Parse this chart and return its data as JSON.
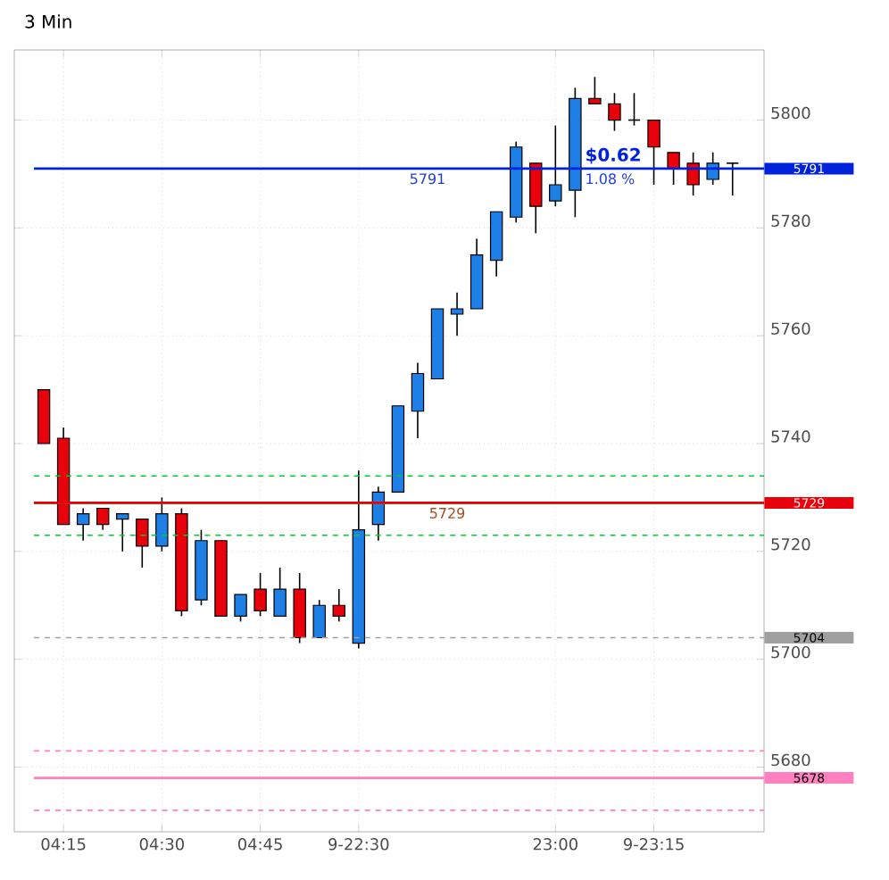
{
  "chart_data": {
    "type": "candlestick",
    "title": "3 Min",
    "categories": [
      null,
      "04:15",
      null,
      null,
      null,
      null,
      "04:30",
      null,
      null,
      null,
      null,
      "04:45",
      null,
      null,
      null,
      null,
      "9-22:30",
      null,
      null,
      null,
      null,
      null,
      null,
      null,
      null,
      null,
      "23:00",
      null,
      null,
      null,
      null,
      "9-23:15",
      null,
      null,
      null,
      null
    ],
    "ohlc": [
      [
        5750,
        5750,
        5740,
        5740
      ],
      [
        5741,
        5743,
        5725,
        5725
      ],
      [
        5725,
        5728,
        5722,
        5727
      ],
      [
        5728,
        5728,
        5724,
        5725
      ],
      [
        5726,
        5727,
        5720,
        5727
      ],
      [
        5726,
        5726,
        5717,
        5721
      ],
      [
        5721,
        5730,
        5720,
        5727
      ],
      [
        5727,
        5728,
        5708,
        5709
      ],
      [
        5711,
        5724,
        5710,
        5722
      ],
      [
        5722,
        5722,
        5708,
        5708
      ],
      [
        5708,
        5712,
        5707,
        5712
      ],
      [
        5713,
        5716,
        5708,
        5709
      ],
      [
        5708,
        5717,
        5708,
        5713
      ],
      [
        5713,
        5716,
        5703,
        5704
      ],
      [
        5704,
        5711,
        5704,
        5710
      ],
      [
        5710,
        5713,
        5707,
        5708
      ],
      [
        5703,
        5735,
        5702,
        5724
      ],
      [
        5725,
        5732,
        5722,
        5731
      ],
      [
        5731,
        5747,
        5731,
        5747
      ],
      [
        5746,
        5755,
        5741,
        5753
      ],
      [
        5752,
        5765,
        5752,
        5765
      ],
      [
        5764,
        5768,
        5760,
        5765
      ],
      [
        5765,
        5778,
        5765,
        5775
      ],
      [
        5774,
        5783,
        5771,
        5783
      ],
      [
        5782,
        5796,
        5781,
        5795
      ],
      [
        5792,
        5792,
        5779,
        5784
      ],
      [
        5785,
        5799,
        5784,
        5788
      ],
      [
        5787,
        5806,
        5782,
        5804
      ],
      [
        5804,
        5808,
        5803,
        5803
      ],
      [
        5803,
        5805,
        5798,
        5800
      ],
      [
        5800,
        5805,
        5799,
        5800
      ],
      [
        5800,
        5800,
        5788,
        5795
      ],
      [
        5794,
        5794,
        5788,
        5791
      ],
      [
        5792,
        5794,
        5786,
        5788
      ],
      [
        5789,
        5794,
        5788,
        5792
      ],
      [
        5792,
        5792,
        5786,
        5792
      ]
    ],
    "colors": [
      "#e8000b",
      "#e8000b",
      "#1e7fe6",
      "#e8000b",
      "#1e7fe6",
      "#e8000b",
      "#1e7fe6",
      "#e8000b",
      "#1e7fe6",
      "#e8000b",
      "#1e7fe6",
      "#e8000b",
      "#1e7fe6",
      "#e8000b",
      "#1e7fe6",
      "#e8000b",
      "#1e7fe6",
      "#1e7fe6",
      "#1e7fe6",
      "#1e7fe6",
      "#1e7fe6",
      "#1e7fe6",
      "#1e7fe6",
      "#1e7fe6",
      "#1e7fe6",
      "#e8000b",
      "#1e7fe6",
      "#1e7fe6",
      "#e8000b",
      "#e8000b",
      "#000000",
      "#e8000b",
      "#e8000b",
      "#e8000b",
      "#1e7fe6",
      "#000000"
    ],
    "ylim": [
      5668,
      5813
    ],
    "yticks": [
      5680,
      5700,
      5720,
      5740,
      5760,
      5780,
      5800
    ],
    "grid": true,
    "ref_lines": [
      {
        "axis": "y",
        "value": 5734,
        "color": "#00cc33",
        "line_style": "dashed"
      },
      {
        "axis": "y",
        "value": 5723,
        "color": "#00cc33",
        "line_style": "dashed"
      },
      {
        "axis": "y",
        "value": 5729,
        "color": "#00cc33",
        "line_style": "solid"
      },
      {
        "axis": "y",
        "value": 5729,
        "label": "5729",
        "color": "#e8000b",
        "line_style": "solid"
      },
      {
        "axis": "y",
        "value": 5791,
        "label": "5791",
        "color": "#0022dd",
        "line_style": "solid"
      },
      {
        "axis": "y",
        "value": 5704,
        "label": "5704",
        "color": "#a0a0a0",
        "line_style": "dashed"
      },
      {
        "axis": "y",
        "value": 5683,
        "color": "#ff80c0",
        "line_style": "dashed"
      },
      {
        "axis": "y",
        "value": 5678,
        "label": "5678",
        "color": "#ff80c0",
        "line_style": "solid"
      },
      {
        "axis": "y",
        "value": 5672,
        "color": "#ff80c0",
        "line_style": "dashed"
      }
    ],
    "annotations": [
      {
        "text": "5791",
        "y": 5791
      },
      {
        "text": "5729",
        "y": 5729
      },
      {
        "text": "$0.62",
        "y": 5791
      },
      {
        "text": "1.08 %",
        "y": 5791
      }
    ]
  }
}
